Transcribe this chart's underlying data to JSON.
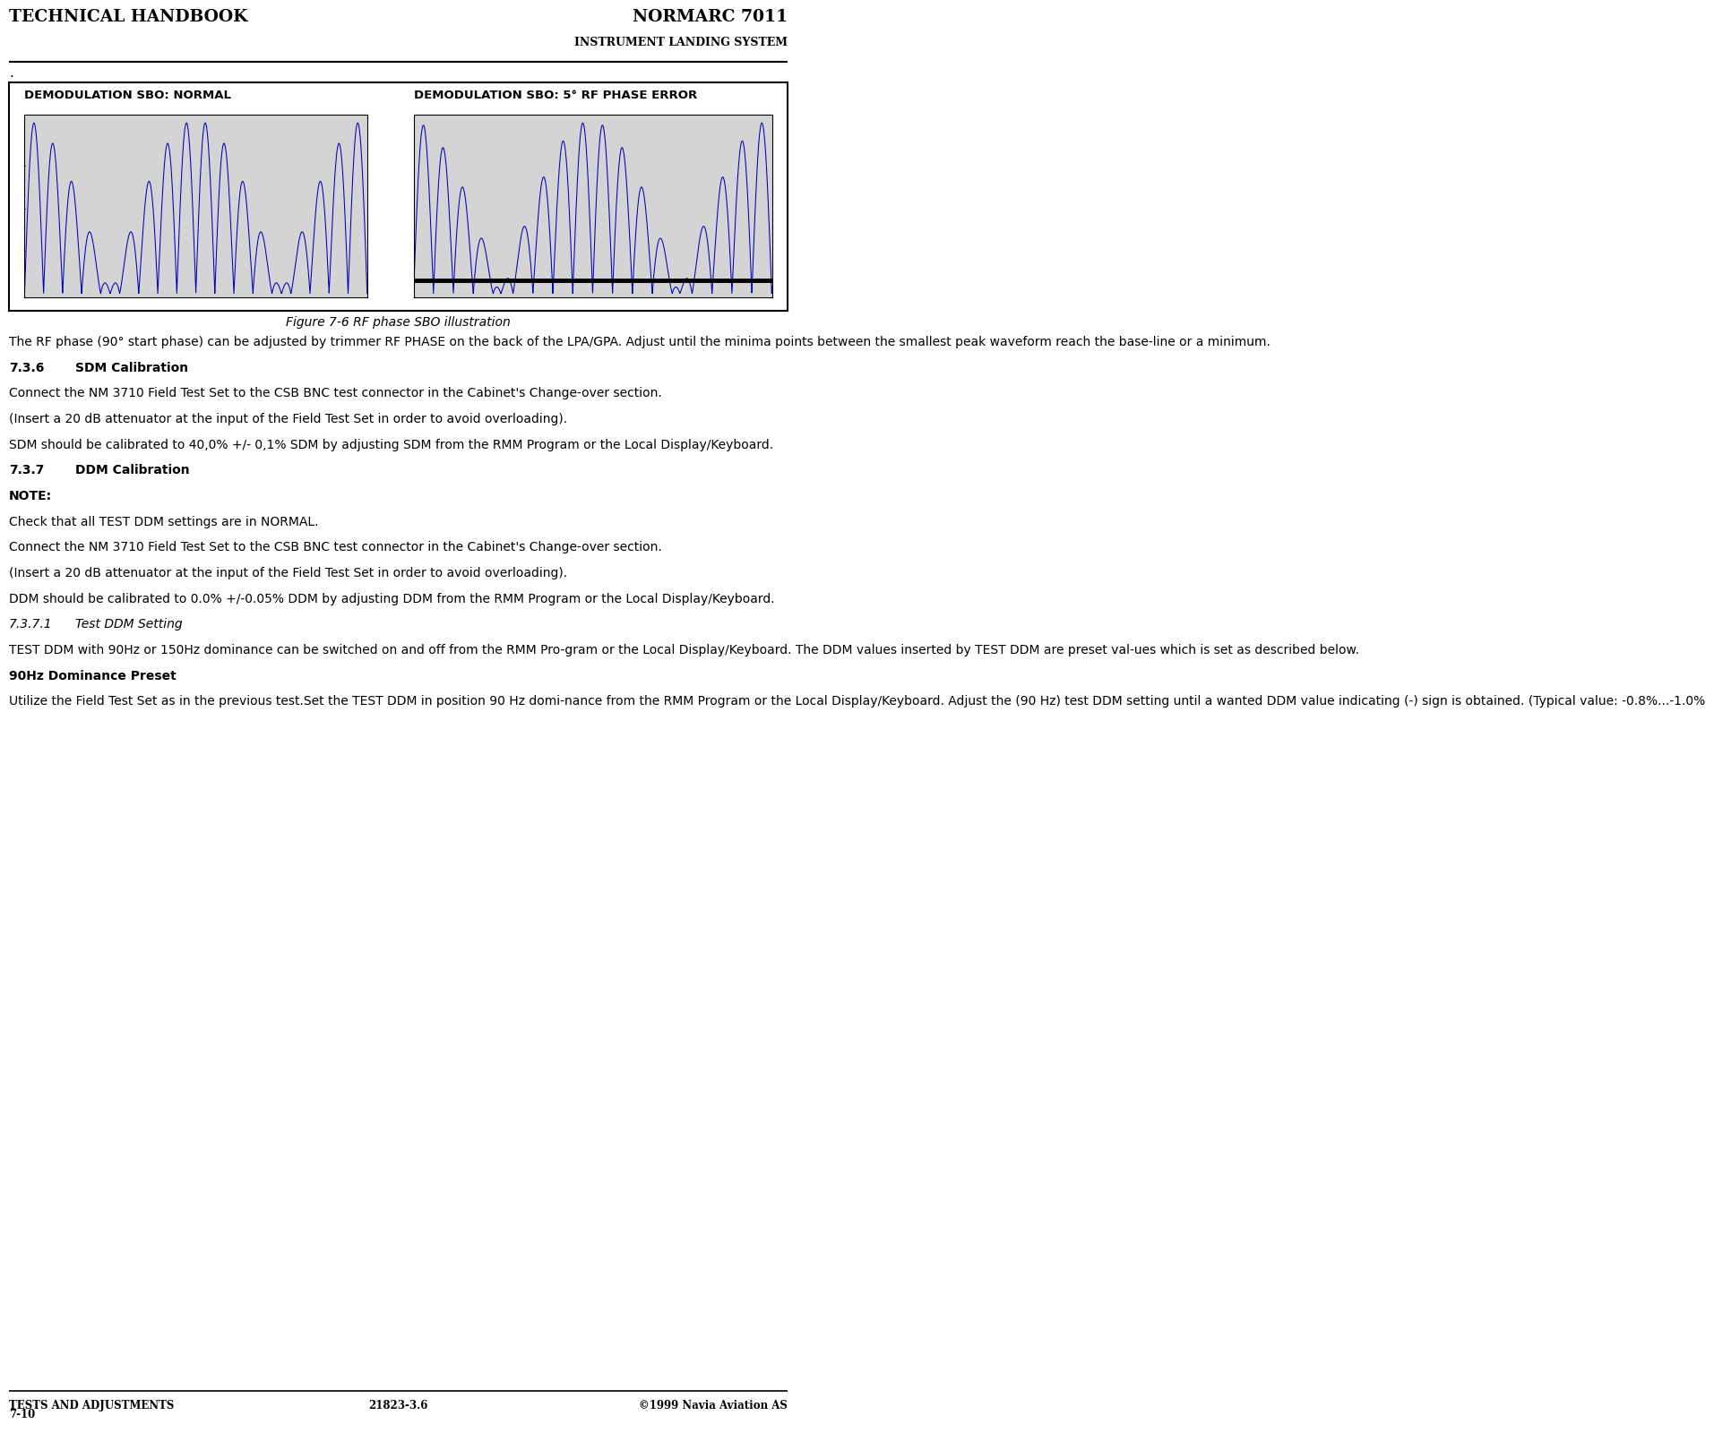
{
  "header_left": "TECHNICAL HANDBOOK",
  "header_right_line1": "NORMARC 7011",
  "header_right_line2": "INSTRUMENT LANDING SYSTEM",
  "footer_left": "TESTS AND ADJUSTMENTS",
  "footer_center": "21823-3.6",
  "footer_right": "©1999 Navia Aviation AS",
  "footer_page": "7-10",
  "figure_caption": "Figure 7-6 RF phase SBO illustration",
  "plot1_title": "DEMODULATION SBO: NORMAL",
  "plot2_title": "DEMODULATION SBO: 5° RF PHASE ERROR",
  "plot_bg": "#d4d4d4",
  "outer_box_bg": "#ffffff",
  "line_color": "#0000bb",
  "dot_char": ".",
  "body_paragraphs": [
    {
      "text": "The RF phase (90° start phase) can be adjusted by trimmer RF PHASE on the back of the LPA/GPA. Adjust until the minima points between the smallest peak waveform reach the base-line or a minimum.",
      "style": "normal"
    },
    {
      "text": "",
      "style": "spacer"
    },
    {
      "text": "7.3.6",
      "label": "SDM Calibration",
      "style": "heading"
    },
    {
      "text": "",
      "style": "spacer"
    },
    {
      "text": "Connect the NM 3710 Field Test Set to the CSB BNC test connector in the Cabinet's Change-over section.",
      "style": "normal"
    },
    {
      "text": "",
      "style": "spacer"
    },
    {
      "text": "(Insert a 20 dB attenuator at the input of the Field Test Set in order to avoid overloading).",
      "style": "normal"
    },
    {
      "text": "",
      "style": "spacer"
    },
    {
      "text": "SDM should be calibrated to 40,0% +/- 0,1% SDM by adjusting SDM from the RMM Program or the Local Display/Keyboard.",
      "style": "normal"
    },
    {
      "text": "",
      "style": "spacer"
    },
    {
      "text": "7.3.7",
      "label": "DDM Calibration",
      "style": "heading"
    },
    {
      "text": "",
      "style": "spacer"
    },
    {
      "text": "NOTE:",
      "style": "bold"
    },
    {
      "text": "",
      "style": "spacer"
    },
    {
      "text": "Check that all TEST DDM settings are in NORMAL.",
      "style": "normal"
    },
    {
      "text": "",
      "style": "spacer"
    },
    {
      "text": "Connect the NM 3710 Field Test Set to the CSB BNC test connector in the Cabinet's Change-over section.",
      "style": "normal"
    },
    {
      "text": "",
      "style": "spacer"
    },
    {
      "text": "(Insert a 20 dB attenuator at the input of the Field Test Set in order to avoid overloading).",
      "style": "normal"
    },
    {
      "text": "",
      "style": "spacer"
    },
    {
      "text": "DDM should be calibrated to 0.0% +/-0.05% DDM by adjusting DDM from the RMM Program or the Local Display/Keyboard.",
      "style": "normal"
    },
    {
      "text": "",
      "style": "spacer"
    },
    {
      "text": "7.3.7.1",
      "label": "Test DDM Setting",
      "style": "heading_italic"
    },
    {
      "text": "",
      "style": "spacer"
    },
    {
      "text": "TEST DDM with 90Hz or 150Hz dominance can be switched on and off from the RMM Pro-gram or the Local Display/Keyboard. The DDM values inserted by TEST DDM are preset val-ues which is set as described below.",
      "style": "normal"
    },
    {
      "text": "",
      "style": "spacer"
    },
    {
      "text": "90Hz Dominance Preset",
      "style": "bold"
    },
    {
      "text": "",
      "style": "spacer"
    },
    {
      "text": "Utilize the Field Test Set as in the previous test.Set the TEST DDM in position 90 Hz domi-nance from the RMM Program or the Local Display/Keyboard. Adjust the (90 Hz) test DDM setting until a wanted DDM value indicating (-) sign is obtained. (Typical value: -0.8%...-1.0%",
      "style": "normal"
    }
  ]
}
